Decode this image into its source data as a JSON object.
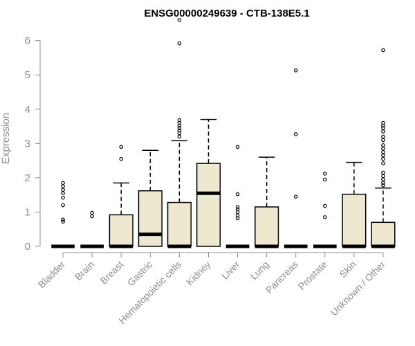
{
  "chart_data": {
    "type": "boxplot",
    "title": "ENSG00000249639 - CTB-138E5.1",
    "xlabel": "",
    "ylabel": "Expression",
    "ylim": [
      0,
      6.7
    ],
    "yticks": [
      0,
      1,
      2,
      3,
      4,
      5,
      6
    ],
    "box_fill": "#efe8d0",
    "box_stroke": "#000000",
    "categories": [
      "Bladder",
      "Brain",
      "Breast",
      "Gastric",
      "Hematopoietic cells",
      "Kidney",
      "Liver",
      "Lung",
      "Pancreas",
      "Prostate",
      "Skin",
      "Unknown / Other"
    ],
    "boxes": [
      {
        "q1": 0,
        "median": 0,
        "q3": 0,
        "whisker_low": 0,
        "whisker_high": 0,
        "outliers": [
          0.72,
          0.78,
          1.2,
          1.42,
          1.55,
          1.65,
          1.75,
          1.85
        ]
      },
      {
        "q1": 0,
        "median": 0,
        "q3": 0,
        "whisker_low": 0,
        "whisker_high": 0,
        "outliers": [
          0.88,
          0.98
        ]
      },
      {
        "q1": 0,
        "median": 0,
        "q3": 0.92,
        "whisker_low": 0,
        "whisker_high": 1.85,
        "outliers": [
          2.55,
          2.9
        ]
      },
      {
        "q1": 0,
        "median": 0.35,
        "q3": 1.62,
        "whisker_low": 0,
        "whisker_high": 2.8,
        "outliers": []
      },
      {
        "q1": 0,
        "median": 0,
        "q3": 1.28,
        "whisker_low": 0,
        "whisker_high": 3.08,
        "outliers": [
          3.2,
          3.3,
          3.38,
          3.45,
          3.52,
          3.6,
          3.68,
          5.92,
          6.6
        ]
      },
      {
        "q1": 0,
        "median": 1.55,
        "q3": 2.42,
        "whisker_low": 0,
        "whisker_high": 3.7,
        "outliers": []
      },
      {
        "q1": 0,
        "median": 0,
        "q3": 0,
        "whisker_low": 0,
        "whisker_high": 0,
        "outliers": [
          0.82,
          0.9,
          1.0,
          1.08,
          1.15,
          1.52,
          2.9
        ]
      },
      {
        "q1": 0,
        "median": 0,
        "q3": 1.15,
        "whisker_low": 0,
        "whisker_high": 2.6,
        "outliers": []
      },
      {
        "q1": 0,
        "median": 0,
        "q3": 0,
        "whisker_low": 0,
        "whisker_high": 0,
        "outliers": [
          1.45,
          3.27,
          5.13
        ]
      },
      {
        "q1": 0,
        "median": 0,
        "q3": 0,
        "whisker_low": 0,
        "whisker_high": 0,
        "outliers": [
          0.85,
          1.18,
          1.95,
          2.12
        ]
      },
      {
        "q1": 0,
        "median": 0,
        "q3": 1.52,
        "whisker_low": 0,
        "whisker_high": 2.45,
        "outliers": []
      },
      {
        "q1": 0,
        "median": 0,
        "q3": 0.7,
        "whisker_low": 0,
        "whisker_high": 1.7,
        "outliers": [
          1.78,
          1.85,
          1.95,
          2.05,
          2.15,
          2.42,
          2.55,
          2.65,
          2.75,
          2.85,
          2.95,
          3.1,
          3.2,
          3.35,
          3.45,
          3.52,
          3.6,
          5.72
        ]
      }
    ]
  }
}
